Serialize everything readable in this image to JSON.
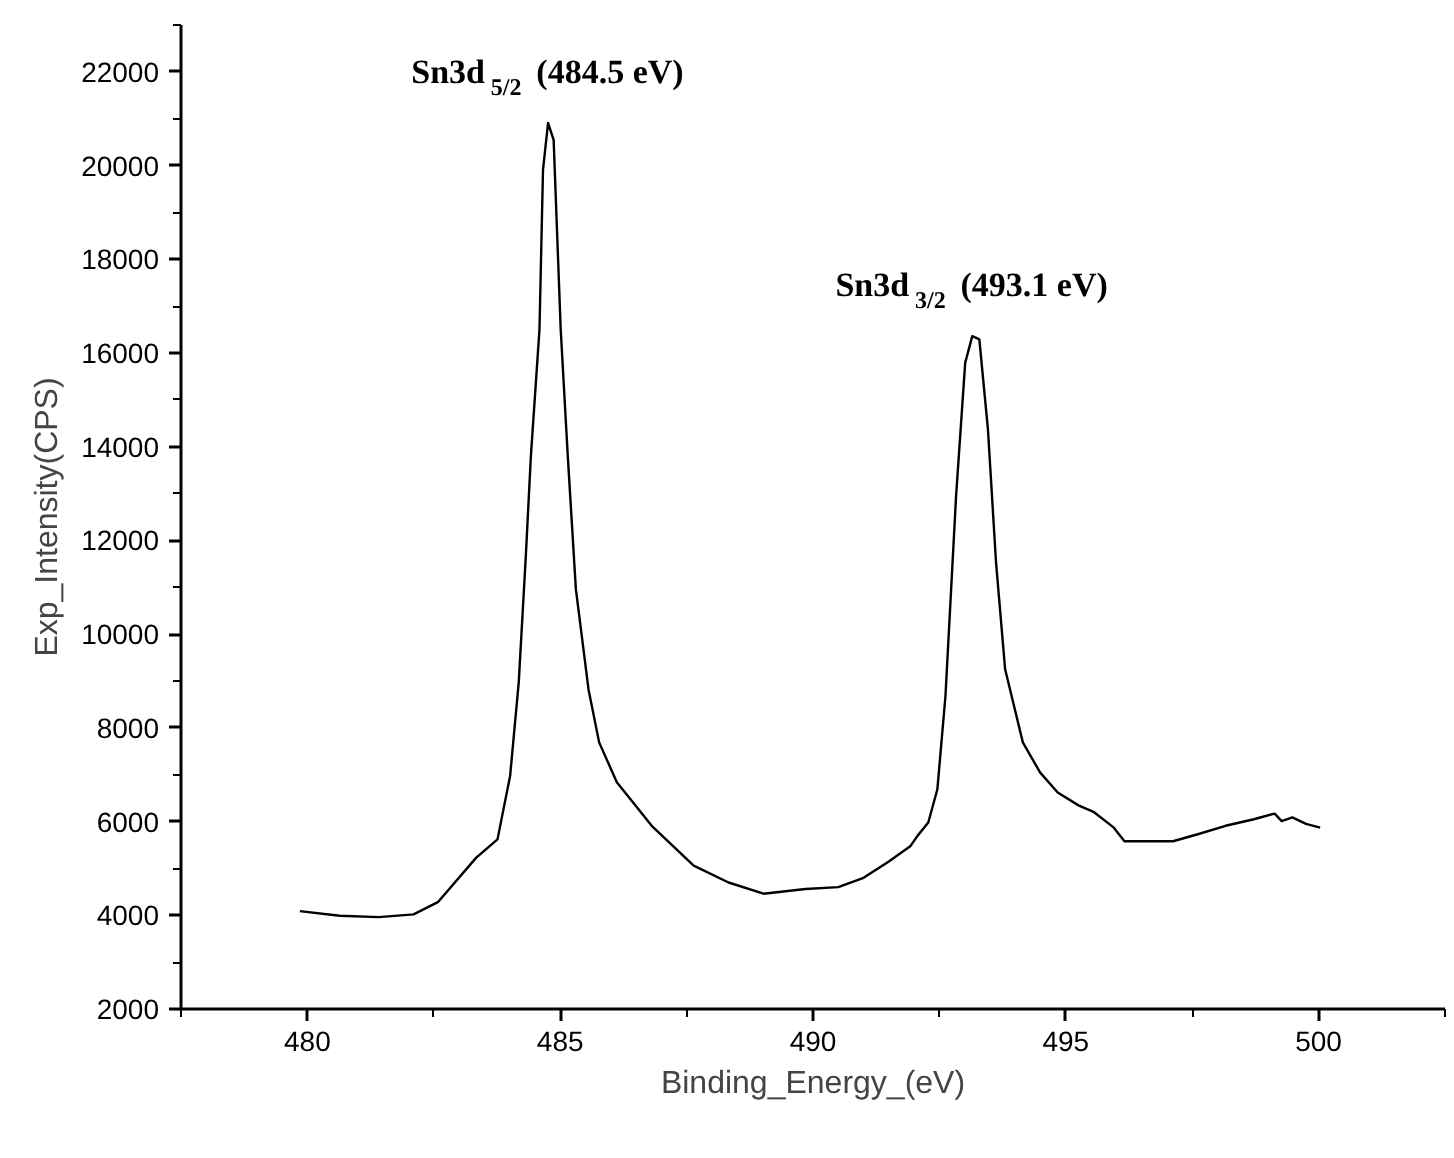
{
  "chart_data": {
    "type": "line",
    "xlabel": "Binding_Energy_(eV)",
    "ylabel": "Exp_Intensity(CPS)",
    "xlim": [
      477.5,
      502.5
    ],
    "ylim": [
      2000,
      23000
    ],
    "xticks": [
      480,
      485,
      490,
      495,
      500
    ],
    "yticks": [
      2000,
      4000,
      6000,
      8000,
      10000,
      12000,
      14000,
      16000,
      18000,
      20000,
      22000
    ],
    "grid": false,
    "marker": "none",
    "line_style": "solid",
    "annotations": [
      {
        "text": "Sn3d$_{5/2}$ (484.5 eV)",
        "x": 484.76,
        "y": 20910
      },
      {
        "text": "Sn3d$_{3/2}$ (493.1 eV)",
        "x": 493.15,
        "y": 16360
      }
    ],
    "series": [
      {
        "color": "#000000",
        "x": [
          479.85,
          480.64,
          481.41,
          482.1,
          482.58,
          483.34,
          483.76,
          484.01,
          484.18,
          484.32,
          484.42,
          484.59,
          484.66,
          484.76,
          484.87,
          485.01,
          485.15,
          485.31,
          485.56,
          485.77,
          486.12,
          486.81,
          487.64,
          488.33,
          489.02,
          489.85,
          490.5,
          491.0,
          491.5,
          491.93,
          492.07,
          492.28,
          492.46,
          492.62,
          492.83,
          493.01,
          493.15,
          493.29,
          493.46,
          493.62,
          493.8,
          494.15,
          494.49,
          494.84,
          495.26,
          495.56,
          495.95,
          496.16,
          496.64,
          497.12,
          497.61,
          498.16,
          498.72,
          499.13,
          499.27,
          499.48,
          499.75,
          500.03
        ],
        "values": [
          4090,
          3990,
          3960,
          4020,
          4280,
          5230,
          5620,
          6980,
          8970,
          11670,
          13800,
          16500,
          19910,
          20910,
          20550,
          16500,
          13800,
          10960,
          8820,
          7690,
          6840,
          5910,
          5060,
          4700,
          4460,
          4560,
          4600,
          4800,
          5150,
          5480,
          5700,
          5980,
          6690,
          8680,
          12950,
          15790,
          16360,
          16290,
          14370,
          11530,
          9250,
          7690,
          7050,
          6620,
          6340,
          6200,
          5870,
          5580,
          5580,
          5580,
          5730,
          5910,
          6050,
          6170,
          6010,
          6090,
          5950,
          5870
        ]
      }
    ]
  }
}
